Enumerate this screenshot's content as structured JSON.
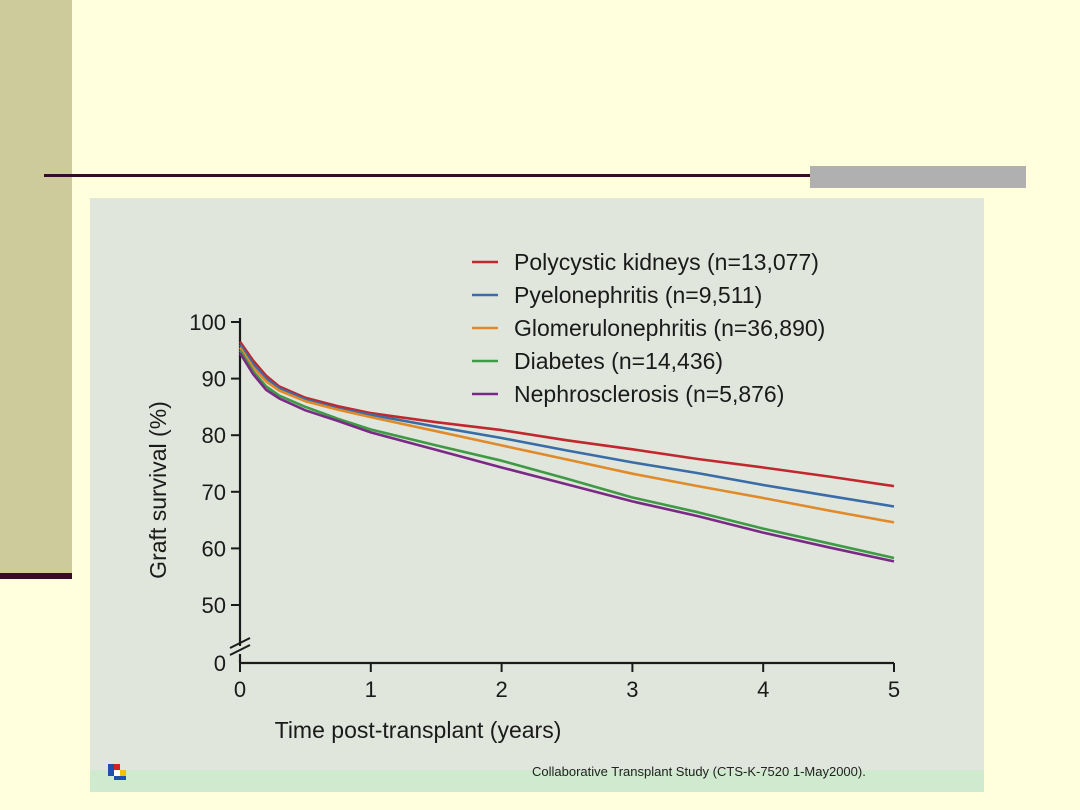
{
  "colors": {
    "background": "#ffffdd",
    "panel": "#e1e6dd",
    "accent_dark": "#3a0a2a",
    "left_band": "#cdcb9b",
    "grey_bar": "#b0b0b0"
  },
  "credit": "Collaborative Transplant Study (CTS-K-7520 1-May2000).",
  "logo_icon": "cts-logo-icon",
  "chart_data": {
    "type": "line",
    "title": "",
    "xlabel": "Time post-transplant (years)",
    "ylabel": "Graft survival (%)",
    "xlim": [
      0,
      5
    ],
    "ylim": [
      50,
      100
    ],
    "x_ticks": [
      "0",
      "1",
      "2",
      "3",
      "4",
      "5"
    ],
    "y_ticks": [
      "100",
      "90",
      "80",
      "70",
      "60",
      "50",
      "0"
    ],
    "axis_break": "y between 0 and 50",
    "x": [
      0,
      0.1,
      0.2,
      0.3,
      0.5,
      0.75,
      1,
      1.5,
      2,
      2.5,
      3,
      3.5,
      4,
      4.5,
      5
    ],
    "series": [
      {
        "name": "Polycystic kidneys (n=13,077)",
        "color": "#c0282d",
        "values": [
          96.5,
          93.2,
          90.5,
          88.6,
          86.6,
          85.1,
          83.9,
          82.3,
          80.9,
          79.1,
          77.5,
          75.8,
          74.3,
          72.7,
          71.0
        ]
      },
      {
        "name": "Pyelonephritis (n=9,511)",
        "color": "#3a6ca8",
        "values": [
          96.0,
          92.6,
          90.0,
          88.3,
          86.3,
          84.7,
          83.6,
          81.5,
          79.5,
          77.3,
          75.2,
          73.3,
          71.2,
          69.3,
          67.4
        ]
      },
      {
        "name": "Glomerulonephritis (n=36,890)",
        "color": "#e08a2a",
        "values": [
          95.5,
          92.0,
          89.5,
          87.9,
          86.0,
          84.5,
          83.2,
          80.7,
          78.2,
          75.7,
          73.2,
          71.0,
          68.9,
          66.7,
          64.6
        ]
      },
      {
        "name": "Diabetes (n=14,436)",
        "color": "#3f9a45",
        "values": [
          95.0,
          91.3,
          88.6,
          87.0,
          85.0,
          82.9,
          81.0,
          78.2,
          75.5,
          72.3,
          69.0,
          66.4,
          63.5,
          60.9,
          58.3
        ]
      },
      {
        "name": "Nephrosclerosis (n=5,876)",
        "color": "#7a2a86",
        "values": [
          94.5,
          90.8,
          88.0,
          86.5,
          84.4,
          82.5,
          80.5,
          77.4,
          74.3,
          71.3,
          68.3,
          65.7,
          62.8,
          60.2,
          57.7
        ]
      }
    ]
  }
}
